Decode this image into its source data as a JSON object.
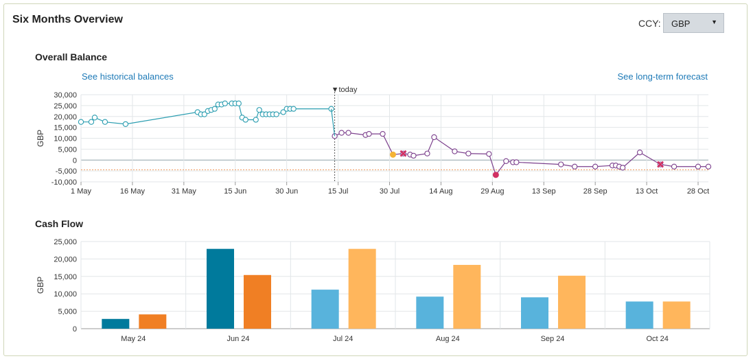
{
  "panel": {
    "title": "Six Months Overview"
  },
  "currency": {
    "label": "CCY:",
    "selected": "GBP"
  },
  "balance_section": {
    "title": "Overall Balance",
    "link_historical": "See historical balances",
    "link_forecast": "See long-term forecast",
    "today_marker": "▼today"
  },
  "cashflow_section": {
    "title": "Cash Flow"
  },
  "colors": {
    "historical_line": "#2a9db0",
    "forecast_line": "#7b3f8c",
    "inflow_actual": "#007a9c",
    "outflow_actual": "#f07f24",
    "inflow_forecast": "#58b3dc",
    "outflow_forecast": "#ffb65c",
    "warning_point": "#f5b335",
    "alert_point": "#d13063"
  },
  "chart_data": [
    {
      "type": "line",
      "title": "Overall Balance",
      "ylabel": "GBP",
      "ylim": [
        -10000,
        30000
      ],
      "y_ticks": [
        "30,000",
        "25,000",
        "20,000",
        "15,000",
        "10,000",
        "5,000",
        "0",
        "-5,000",
        "-10,000"
      ],
      "x_ticks": [
        "1 May",
        "16 May",
        "31 May",
        "15 Jun",
        "30 Jun",
        "15 Jul",
        "30 Jul",
        "14 Aug",
        "29 Aug",
        "13 Sep",
        "28 Sep",
        "13 Oct",
        "28 Oct"
      ],
      "x_range_days": [
        0,
        183
      ],
      "today_day": 74,
      "grid": true,
      "series": [
        {
          "kind": "historical",
          "points": [
            [
              0,
              17500
            ],
            [
              3,
              17500
            ],
            [
              4,
              19500
            ],
            [
              7,
              17500
            ],
            [
              13,
              16500
            ],
            [
              34,
              22000
            ],
            [
              35,
              21000
            ],
            [
              36,
              21000
            ],
            [
              37,
              22500
            ],
            [
              38,
              23000
            ],
            [
              39,
              23500
            ],
            [
              40,
              25500
            ],
            [
              41,
              25500
            ],
            [
              42,
              26000
            ],
            [
              44,
              26000
            ],
            [
              45,
              26000
            ],
            [
              46,
              26000
            ],
            [
              47,
              19500
            ],
            [
              48,
              18500
            ],
            [
              51,
              18500
            ],
            [
              52,
              23000
            ],
            [
              53,
              21000
            ],
            [
              54,
              21000
            ],
            [
              55,
              21000
            ],
            [
              56,
              21000
            ],
            [
              57,
              21000
            ],
            [
              59,
              22000
            ],
            [
              60,
              23500
            ],
            [
              61,
              23500
            ],
            [
              62,
              23500
            ],
            [
              73,
              23500
            ]
          ]
        },
        {
          "kind": "forecast",
          "points": [
            [
              74,
              11000
            ],
            [
              76,
              12500
            ],
            [
              78,
              12500
            ],
            [
              83,
              11500
            ],
            [
              84,
              12000
            ],
            [
              88,
              12000
            ],
            [
              91,
              2500
            ],
            [
              94,
              3000
            ],
            [
              96,
              2500
            ],
            [
              97,
              2000
            ],
            [
              101,
              3000
            ],
            [
              103,
              10500
            ],
            [
              109,
              4000
            ],
            [
              113,
              3000
            ],
            [
              119,
              2800
            ],
            [
              121,
              -6800
            ],
            [
              124,
              -500
            ],
            [
              126,
              -1000
            ],
            [
              127,
              -1000
            ],
            [
              140,
              -2000
            ],
            [
              144,
              -3000
            ],
            [
              150,
              -3000
            ],
            [
              155,
              -2500
            ],
            [
              156,
              -2500
            ],
            [
              157,
              -3000
            ],
            [
              158,
              -3500
            ],
            [
              163,
              3500
            ],
            [
              169,
              -2000
            ],
            [
              173,
              -3000
            ],
            [
              180,
              -3000
            ],
            [
              183,
              -3000
            ]
          ]
        }
      ],
      "special_points": [
        {
          "day": 91,
          "value": 2500,
          "marker": "warning"
        },
        {
          "day": 94,
          "value": 3000,
          "marker": "cross"
        },
        {
          "day": 121,
          "value": -6800,
          "marker": "alert"
        },
        {
          "day": 169,
          "value": -2000,
          "marker": "cross"
        }
      ],
      "threshold_value": -4500
    },
    {
      "type": "bar",
      "title": "Cash Flow",
      "ylabel": "GBP",
      "ylim": [
        0,
        25000
      ],
      "y_ticks": [
        "25,000",
        "20,000",
        "15,000",
        "10,000",
        "5,000",
        "0"
      ],
      "categories": [
        "May 24",
        "Jun 24",
        "Jul 24",
        "Aug 24",
        "Sep 24",
        "Oct 24"
      ],
      "forecast_from_index": 2,
      "grid": true,
      "series": [
        {
          "values": [
            2800,
            22900,
            11200,
            9200,
            9000,
            7800
          ]
        },
        {
          "values": [
            4100,
            15400,
            22900,
            18300,
            15200,
            7800
          ]
        }
      ]
    }
  ]
}
